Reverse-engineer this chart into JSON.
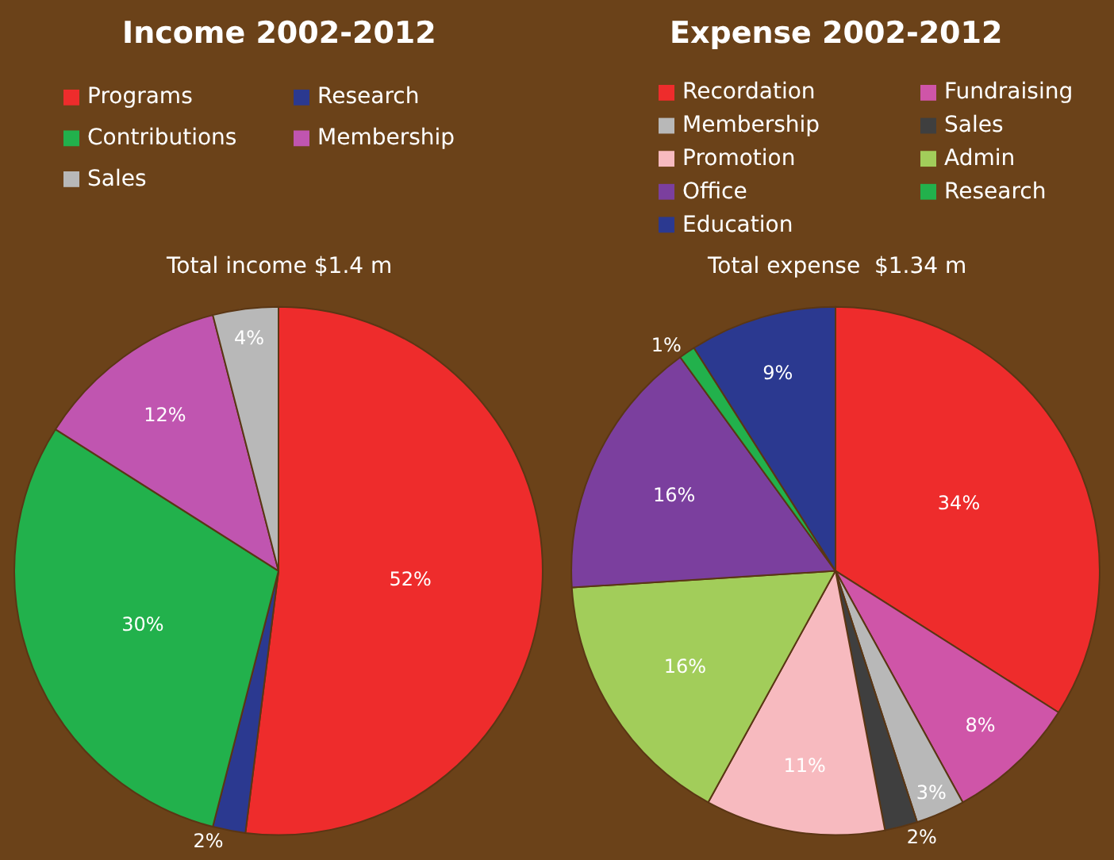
{
  "chart_data": [
    {
      "type": "pie",
      "title": "Income 2002-2012",
      "subtitle": "Total income $1.4 m",
      "legend": "top",
      "categories": [
        "Programs",
        "Research",
        "Contributions",
        "Membership",
        "Sales"
      ],
      "values": [
        52,
        2,
        30,
        12,
        4
      ],
      "value_labels": [
        "52%",
        "2%",
        "30%",
        "12%",
        "4%"
      ],
      "colors": [
        "#ee2c2c",
        "#2b3990",
        "#22b14c",
        "#c055b0",
        "#b8b8b8"
      ]
    },
    {
      "type": "pie",
      "title": "Expense 2002-2012",
      "subtitle": "Total expense  $1.34 m",
      "legend": "top",
      "categories": [
        "Recordation",
        "Fundraising",
        "Membership",
        "Sales",
        "Promotion",
        "Admin",
        "Office",
        "Research",
        "Education"
      ],
      "values": [
        34,
        8,
        3,
        2,
        11,
        16,
        16,
        1,
        9
      ],
      "value_labels": [
        "34%",
        "8%",
        "3%",
        "2%",
        "11%",
        "16%",
        "16%",
        "1%",
        "9%"
      ],
      "colors": [
        "#ee2c2c",
        "#cf55a8",
        "#b8b8b8",
        "#3f3f3f",
        "#f7babf",
        "#a2cd5a",
        "#7b3f9e",
        "#22b14c",
        "#2b3990"
      ]
    }
  ]
}
